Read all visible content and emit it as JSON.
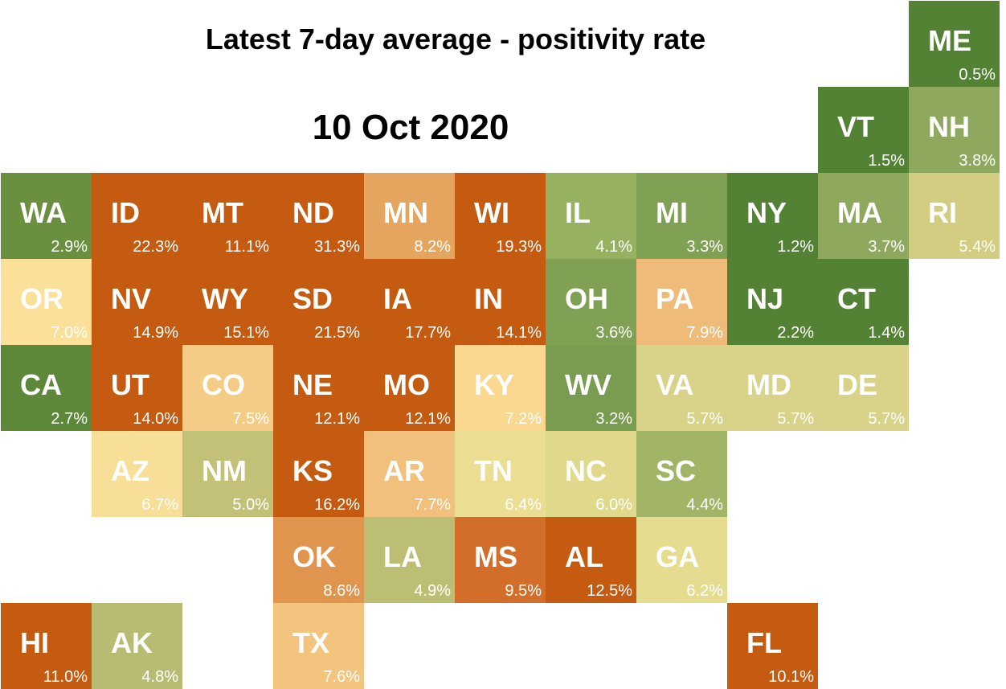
{
  "title": "Latest 7-day average - positivity rate",
  "subtitle": "10 Oct 2020",
  "chart_data": {
    "type": "heatmap",
    "title": "Latest 7-day average - positivity rate",
    "subtitle": "10 Oct 2020",
    "grid_columns": 11,
    "grid_rows": 8,
    "tiles": [
      {
        "state": "ME",
        "value": "0.5%",
        "col": 10,
        "row": 0,
        "color": "#548235"
      },
      {
        "state": "VT",
        "value": "1.5%",
        "col": 9,
        "row": 1,
        "color": "#548235"
      },
      {
        "state": "NH",
        "value": "3.8%",
        "col": 10,
        "row": 1,
        "color": "#8ea85d"
      },
      {
        "state": "WA",
        "value": "2.9%",
        "col": 0,
        "row": 2,
        "color": "#6a903f"
      },
      {
        "state": "ID",
        "value": "22.3%",
        "col": 1,
        "row": 2,
        "color": "#c55a11"
      },
      {
        "state": "MT",
        "value": "11.1%",
        "col": 2,
        "row": 2,
        "color": "#c55a11"
      },
      {
        "state": "ND",
        "value": "31.3%",
        "col": 3,
        "row": 2,
        "color": "#c55a11"
      },
      {
        "state": "MN",
        "value": "8.2%",
        "col": 4,
        "row": 2,
        "color": "#e6a55e"
      },
      {
        "state": "WI",
        "value": "19.3%",
        "col": 5,
        "row": 2,
        "color": "#c55a11"
      },
      {
        "state": "IL",
        "value": "4.1%",
        "col": 6,
        "row": 2,
        "color": "#96b261"
      },
      {
        "state": "MI",
        "value": "3.3%",
        "col": 7,
        "row": 2,
        "color": "#80a153"
      },
      {
        "state": "NY",
        "value": "1.2%",
        "col": 8,
        "row": 2,
        "color": "#548235"
      },
      {
        "state": "MA",
        "value": "3.7%",
        "col": 9,
        "row": 2,
        "color": "#8ea85d"
      },
      {
        "state": "RI",
        "value": "5.4%",
        "col": 10,
        "row": 2,
        "color": "#d2cd80"
      },
      {
        "state": "OR",
        "value": "7.0%",
        "col": 0,
        "row": 3,
        "color": "#fbe09a"
      },
      {
        "state": "NV",
        "value": "14.9%",
        "col": 1,
        "row": 3,
        "color": "#c55a11"
      },
      {
        "state": "WY",
        "value": "15.1%",
        "col": 2,
        "row": 3,
        "color": "#c55a11"
      },
      {
        "state": "SD",
        "value": "21.5%",
        "col": 3,
        "row": 3,
        "color": "#c55a11"
      },
      {
        "state": "IA",
        "value": "17.7%",
        "col": 4,
        "row": 3,
        "color": "#c55a11"
      },
      {
        "state": "IN",
        "value": "14.1%",
        "col": 5,
        "row": 3,
        "color": "#c55a11"
      },
      {
        "state": "OH",
        "value": "3.6%",
        "col": 6,
        "row": 3,
        "color": "#80a153"
      },
      {
        "state": "PA",
        "value": "7.9%",
        "col": 7,
        "row": 3,
        "color": "#efbb78"
      },
      {
        "state": "NJ",
        "value": "2.2%",
        "col": 8,
        "row": 3,
        "color": "#548235"
      },
      {
        "state": "CT",
        "value": "1.4%",
        "col": 9,
        "row": 3,
        "color": "#548235"
      },
      {
        "state": "CA",
        "value": "2.7%",
        "col": 0,
        "row": 4,
        "color": "#5e8839"
      },
      {
        "state": "UT",
        "value": "14.0%",
        "col": 1,
        "row": 4,
        "color": "#c55a11"
      },
      {
        "state": "CO",
        "value": "7.5%",
        "col": 2,
        "row": 4,
        "color": "#f5cc86"
      },
      {
        "state": "NE",
        "value": "12.1%",
        "col": 3,
        "row": 4,
        "color": "#c55a11"
      },
      {
        "state": "MO",
        "value": "12.1%",
        "col": 4,
        "row": 4,
        "color": "#c55a11"
      },
      {
        "state": "KY",
        "value": "7.2%",
        "col": 5,
        "row": 4,
        "color": "#fad890"
      },
      {
        "state": "WV",
        "value": "3.2%",
        "col": 6,
        "row": 4,
        "color": "#7a9c50"
      },
      {
        "state": "VA",
        "value": "5.7%",
        "col": 7,
        "row": 4,
        "color": "#d8d388"
      },
      {
        "state": "MD",
        "value": "5.7%",
        "col": 8,
        "row": 4,
        "color": "#d8d388"
      },
      {
        "state": "DE",
        "value": "5.7%",
        "col": 9,
        "row": 4,
        "color": "#d8d388"
      },
      {
        "state": "AZ",
        "value": "6.7%",
        "col": 1,
        "row": 5,
        "color": "#f8df98"
      },
      {
        "state": "NM",
        "value": "5.0%",
        "col": 2,
        "row": 5,
        "color": "#c2c177"
      },
      {
        "state": "KS",
        "value": "16.2%",
        "col": 3,
        "row": 5,
        "color": "#c55a11"
      },
      {
        "state": "AR",
        "value": "7.7%",
        "col": 4,
        "row": 5,
        "color": "#f0c07c"
      },
      {
        "state": "TN",
        "value": "6.4%",
        "col": 5,
        "row": 5,
        "color": "#ebdd92"
      },
      {
        "state": "NC",
        "value": "6.0%",
        "col": 6,
        "row": 5,
        "color": "#e0d98c"
      },
      {
        "state": "SC",
        "value": "4.4%",
        "col": 7,
        "row": 5,
        "color": "#a2b466"
      },
      {
        "state": "OK",
        "value": "8.6%",
        "col": 3,
        "row": 6,
        "color": "#e0954e"
      },
      {
        "state": "LA",
        "value": "4.9%",
        "col": 4,
        "row": 6,
        "color": "#bcbe74"
      },
      {
        "state": "MS",
        "value": "9.5%",
        "col": 5,
        "row": 6,
        "color": "#d36e2a"
      },
      {
        "state": "AL",
        "value": "12.5%",
        "col": 6,
        "row": 6,
        "color": "#c55a11"
      },
      {
        "state": "GA",
        "value": "6.2%",
        "col": 7,
        "row": 6,
        "color": "#e6dc8f"
      },
      {
        "state": "HI",
        "value": "11.0%",
        "col": 0,
        "row": 7,
        "color": "#c55a11"
      },
      {
        "state": "AK",
        "value": "4.8%",
        "col": 1,
        "row": 7,
        "color": "#b8bc72"
      },
      {
        "state": "TX",
        "value": "7.6%",
        "col": 3,
        "row": 7,
        "color": "#f2c47e"
      },
      {
        "state": "FL",
        "value": "10.1%",
        "col": 8,
        "row": 7,
        "color": "#c55a11"
      }
    ]
  }
}
